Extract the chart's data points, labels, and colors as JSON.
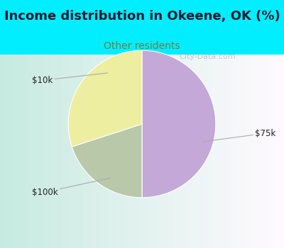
{
  "title": "Income distribution in Okeene, OK (%)",
  "subtitle": "Other residents",
  "title_color": "#1a1a2e",
  "subtitle_color": "#7a7a3a",
  "bg_cyan": "#00eeff",
  "chart_bg_left": "#c8e8d8",
  "chart_bg_right": "#f0f8f8",
  "slices": [
    {
      "label": "$75k",
      "value": 50,
      "color": "#c4a8d8"
    },
    {
      "label": "$10k",
      "value": 30,
      "color": "#eeeea0"
    },
    {
      "label": "$100k",
      "value": 20,
      "color": "#b8c8a8"
    }
  ],
  "start_angle": 90,
  "figsize": [
    4.0,
    3.5
  ],
  "dpi": 100,
  "title_fontsize": 13,
  "subtitle_fontsize": 10
}
